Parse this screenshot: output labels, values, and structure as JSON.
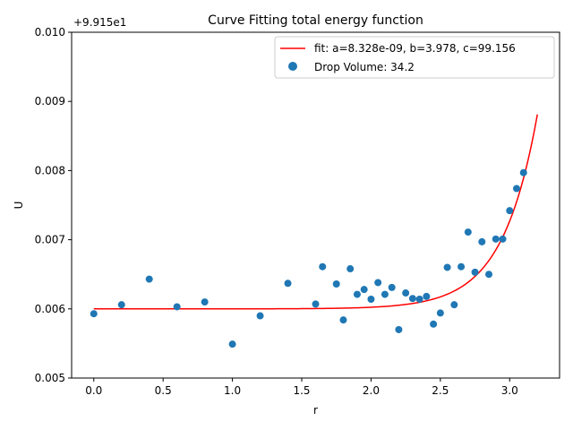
{
  "chart_data": {
    "type": "scatter",
    "title": "Curve Fitting total energy function",
    "xlabel": "r",
    "ylabel": "U",
    "offset_text": "+9.915e1",
    "xlim": [
      -0.16,
      3.36
    ],
    "ylim": [
      0.005,
      0.01
    ],
    "xticks": [
      0.0,
      0.5,
      1.0,
      1.5,
      2.0,
      2.5,
      3.0
    ],
    "xtick_labels": [
      "0.0",
      "0.5",
      "1.0",
      "1.5",
      "2.0",
      "2.5",
      "3.0"
    ],
    "yticks": [
      0.005,
      0.006,
      0.007,
      0.008,
      0.009,
      0.01
    ],
    "ytick_labels": [
      "0.005",
      "0.006",
      "0.007",
      "0.008",
      "0.009",
      "0.010"
    ],
    "grid": false,
    "legend_position": "top-right",
    "series": [
      {
        "name": "fit: a=8.328e-09, b=3.978, c=99.156",
        "kind": "line",
        "color": "#ff0000",
        "model": {
          "form": "a*exp(b*r)+c",
          "a": 8.328e-09,
          "b": 3.978,
          "c": 99.156
        },
        "x_range": [
          0.0,
          3.2
        ]
      },
      {
        "name": "Drop Volume: 34.2",
        "kind": "scatter",
        "color": "#1f77b4",
        "points": [
          [
            0.0,
            0.00593
          ],
          [
            0.2,
            0.00606
          ],
          [
            0.4,
            0.00643
          ],
          [
            0.6,
            0.00603
          ],
          [
            0.8,
            0.0061
          ],
          [
            1.0,
            0.00549
          ],
          [
            1.2,
            0.0059
          ],
          [
            1.4,
            0.00637
          ],
          [
            1.6,
            0.00607
          ],
          [
            1.65,
            0.00661
          ],
          [
            1.75,
            0.00636
          ],
          [
            1.8,
            0.00584
          ],
          [
            1.85,
            0.00658
          ],
          [
            1.9,
            0.00621
          ],
          [
            1.95,
            0.00628
          ],
          [
            2.0,
            0.00614
          ],
          [
            2.05,
            0.00638
          ],
          [
            2.1,
            0.00621
          ],
          [
            2.15,
            0.00631
          ],
          [
            2.2,
            0.0057
          ],
          [
            2.25,
            0.00623
          ],
          [
            2.3,
            0.00615
          ],
          [
            2.35,
            0.00614
          ],
          [
            2.4,
            0.00618
          ],
          [
            2.45,
            0.00578
          ],
          [
            2.5,
            0.00594
          ],
          [
            2.55,
            0.0066
          ],
          [
            2.6,
            0.00606
          ],
          [
            2.65,
            0.00661
          ],
          [
            2.7,
            0.00711
          ],
          [
            2.75,
            0.00653
          ],
          [
            2.8,
            0.00697
          ],
          [
            2.85,
            0.0065
          ],
          [
            2.9,
            0.00701
          ],
          [
            2.95,
            0.00701
          ],
          [
            3.0,
            0.00742
          ],
          [
            3.05,
            0.00774
          ],
          [
            3.1,
            0.00797
          ]
        ]
      }
    ]
  }
}
